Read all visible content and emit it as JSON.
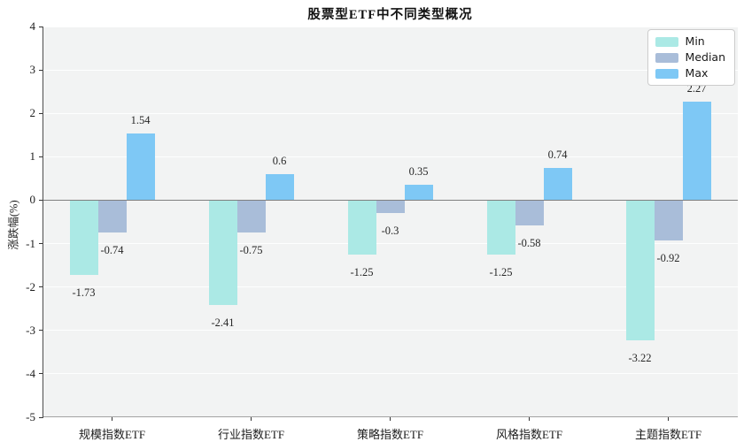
{
  "chart_data": {
    "type": "bar",
    "title": "股票型ETF中不同类型概况",
    "xlabel": "",
    "ylabel": "涨跌幅(%)",
    "categories": [
      "规模指数ETF",
      "行业指数ETF",
      "策略指数ETF",
      "风格指数ETF",
      "主题指数ETF"
    ],
    "series": [
      {
        "name": "Min",
        "color": "#abe9e5",
        "values": [
          -1.73,
          -2.41,
          -1.25,
          -1.25,
          -3.22
        ]
      },
      {
        "name": "Median",
        "color": "#a9bdd9",
        "values": [
          -0.74,
          -0.75,
          -0.3,
          -0.58,
          -0.92
        ]
      },
      {
        "name": "Max",
        "color": "#7ec8f5",
        "values": [
          1.54,
          0.6,
          0.35,
          0.74,
          2.27
        ]
      }
    ],
    "ylim": [
      -5,
      4
    ],
    "yticks": [
      4,
      3,
      2,
      1,
      0,
      -1,
      -2,
      -3,
      -4,
      -5
    ],
    "grid": true,
    "legend_position": "upper right",
    "value_labels_shown": true
  },
  "style": {
    "plot_background": "#f2f3f3",
    "figure_background": "#ffffff",
    "zero_line_color": "#7f7f7f",
    "axis_spine_color": "#4d4d4d"
  }
}
